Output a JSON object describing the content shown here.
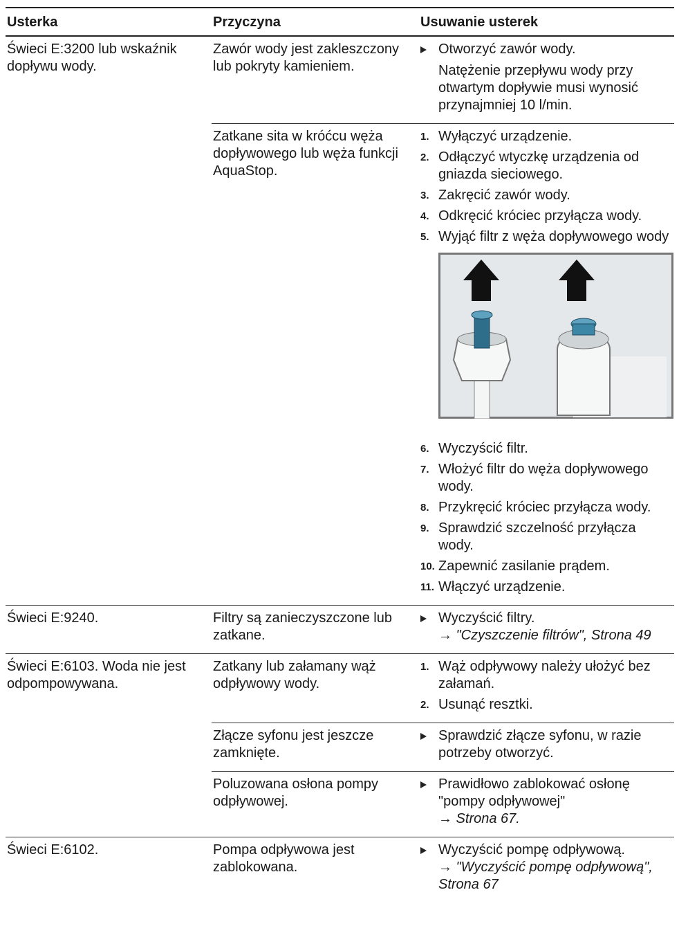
{
  "table": {
    "headers": [
      "Usterka",
      "Przyczyna",
      "Usuwanie usterek"
    ],
    "rows": [
      {
        "fault": "Świeci E:3200 lub wskaźnik dopływu wody.",
        "causes": [
          {
            "cause": "Zawór wody jest zakleszczony lub pokryty kamieniem.",
            "steps": [
              {
                "text": "Otworzyć zawór wody.",
                "note": "Natężenie przepływu wody przy otwartym dopływie musi wynosić przynajmniej 10 l/min."
              }
            ]
          },
          {
            "cause": "Zatkane sita w króćcu węża dopływowego lub węża funkcji AquaStop.",
            "steps": [
              {
                "number": "1.",
                "text": "Wyłączyć urządzenie."
              },
              {
                "number": "2.",
                "text": "Odłączyć wtyczkę urządzenia od gniazda sieciowego."
              },
              {
                "number": "3.",
                "text": "Zakręcić zawór wody."
              },
              {
                "number": "4.",
                "text": "Odkręcić króciec przyłącza wody."
              },
              {
                "number": "5.",
                "text": "Wyjąć filtr z węża dopływowego wody"
              }
            ],
            "steps_after_image": [
              {
                "number": "6.",
                "text": "Wyczyścić filtr."
              },
              {
                "number": "7.",
                "text": "Włożyć filtr do węża dopływowego wody."
              },
              {
                "number": "8.",
                "text": "Przykręcić króciec przyłącza wody."
              },
              {
                "number": "9.",
                "text": "Sprawdzić szczelność przyłącza wody."
              },
              {
                "number": "10.",
                "text": "Zapewnić zasilanie prądem."
              },
              {
                "number": "11.",
                "text": "Włączyć urządzenie."
              }
            ]
          }
        ]
      },
      {
        "fault": "Świeci E:9240.",
        "causes": [
          {
            "cause": "Filtry są zanieczyszczone lub zatkane.",
            "steps": [
              {
                "text": "Wyczyścić filtry.",
                "link": "→ \"Czyszczenie filtrów\", Strona 49"
              }
            ]
          }
        ]
      },
      {
        "fault": "Świeci E:6103. Woda nie jest odpompowywana.",
        "causes": [
          {
            "cause": "Zatkany lub załamany wąż odpływowy wody.",
            "steps": [
              {
                "number": "1.",
                "text": "Wąż odpływowy należy ułożyć bez załamań."
              },
              {
                "number": "2.",
                "text": "Usunąć resztki."
              }
            ]
          },
          {
            "cause": "Złącze syfonu jest jeszcze zamknięte.",
            "steps": [
              {
                "text": "Sprawdzić złącze syfonu, w razie potrzeby otworzyć."
              }
            ]
          },
          {
            "cause": "Poluzowana osłona pompy odpływowej.",
            "steps": [
              {
                "text": "Prawidłowo zablokować osłonę \"pompy odpływowej\"",
                "link": "→ Strona 67."
              }
            ]
          }
        ]
      },
      {
        "fault": "Świeci E:6102.",
        "causes": [
          {
            "cause": "Pompa odpływowa jest zablokowana.",
            "steps": [
              {
                "text": "Wyczyścić pompę odpływową.",
                "link": "→ \"Wyczyścić pompę odpływową\", Strona 67"
              }
            ]
          }
        ]
      }
    ]
  }
}
